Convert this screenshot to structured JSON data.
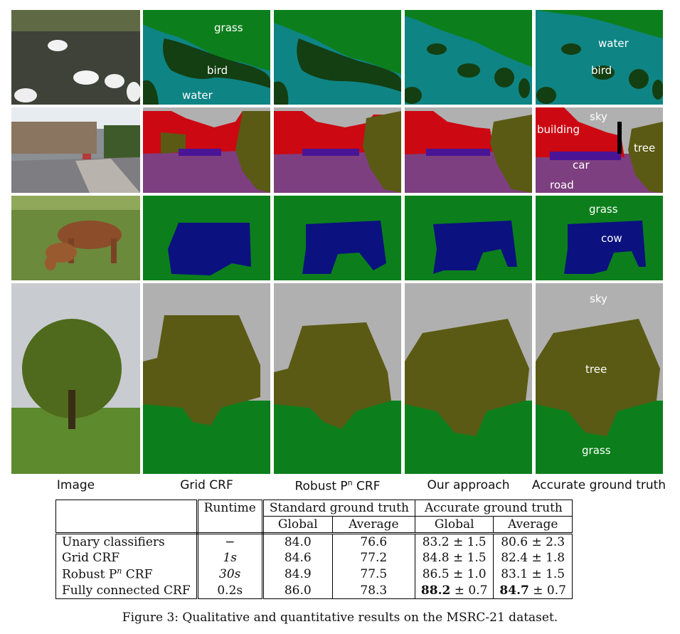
{
  "column_labels": [
    "Image",
    "Grid CRF",
    "Robust P",
    "n",
    " CRF",
    "Our approach",
    "Accurate ground truth"
  ],
  "columns": {
    "image": "Image",
    "grid": "Grid CRF",
    "robust_prefix": "Robust P",
    "robust_sup": "n",
    "robust_suffix": " CRF",
    "ours": "Our approach",
    "accurate": "Accurate ground truth"
  },
  "segment_labels": {
    "row1": {
      "grass": "grass",
      "bird": "bird",
      "water": "water",
      "water_gt": "water",
      "bird_gt": "bird"
    },
    "row2": {
      "sky": "sky",
      "building": "building",
      "tree": "tree",
      "car": "car",
      "road": "road"
    },
    "row3": {
      "grass": "grass",
      "cow": "cow"
    },
    "row4": {
      "sky": "sky",
      "tree": "tree",
      "grass": "grass"
    }
  },
  "colors": {
    "grass": "#0c7f1c",
    "water": "#0f8484",
    "bird": "#133f12",
    "sky": "#b0b0b0",
    "building": "#cc0812",
    "tree": "#5a5a14",
    "car": "#4a1496",
    "road": "#7d3f80",
    "cow": "#0b117f"
  },
  "table": {
    "header_runtime": "Runtime",
    "header_standard": "Standard ground truth",
    "header_accurate": "Accurate ground truth",
    "sub_global": "Global",
    "sub_average": "Average",
    "rows": [
      {
        "method": "Unary classifiers",
        "runtime": "−",
        "std_global": "84.0",
        "std_avg": "76.6",
        "acc_global": "83.2 ± 1.5",
        "acc_avg": "80.6 ± 2.3"
      },
      {
        "method": "Grid CRF",
        "runtime": "1s",
        "std_global": "84.6",
        "std_avg": "77.2",
        "acc_global": "84.8 ± 1.5",
        "acc_avg": "82.4 ± 1.8"
      },
      {
        "method_prefix": "Robust P",
        "method_sup": "n",
        "method_suffix": " CRF",
        "runtime": "30s",
        "std_global": "84.9",
        "std_avg": "77.5",
        "acc_global": "86.5 ± 1.0",
        "acc_avg": "83.1 ± 1.5"
      },
      {
        "method": "Fully connected CRF",
        "runtime": "0.2s",
        "std_global": "86.0",
        "std_avg": "78.3",
        "acc_global_bold": "88.2",
        "acc_global_rest": " ± 0.7",
        "acc_avg_bold": "84.7",
        "acc_avg_rest": " ± 0.7"
      }
    ]
  },
  "caption": "Figure 3: Qualitative and quantitative results on the MSRC-21 dataset."
}
